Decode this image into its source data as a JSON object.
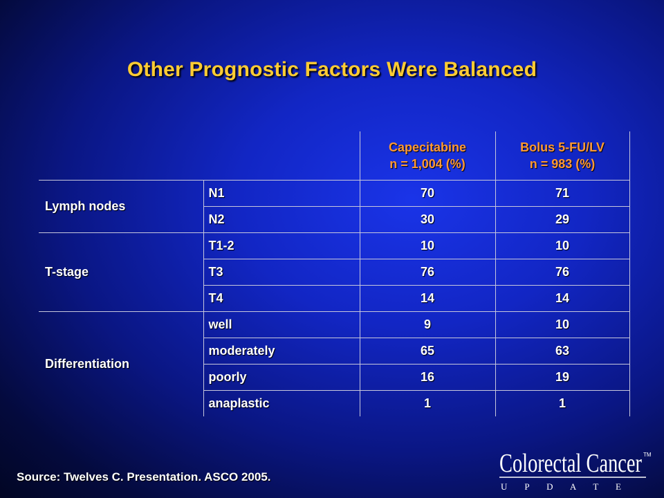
{
  "title": "Other Prognostic Factors Were Balanced",
  "table": {
    "columns": [
      {
        "name": "Capecitabine",
        "sub": "n = 1,004 (%)"
      },
      {
        "name": "Bolus 5-FU/LV",
        "sub": "n = 983 (%)"
      }
    ],
    "groups": [
      {
        "label": "Lymph nodes",
        "rows": [
          {
            "label": "N1",
            "values": [
              "70",
              "71"
            ]
          },
          {
            "label": "N2",
            "values": [
              "30",
              "29"
            ]
          }
        ]
      },
      {
        "label": "T-stage",
        "rows": [
          {
            "label": "T1-2",
            "values": [
              "10",
              "10"
            ]
          },
          {
            "label": "T3",
            "values": [
              "76",
              "76"
            ]
          },
          {
            "label": "T4",
            "values": [
              "14",
              "14"
            ]
          }
        ]
      },
      {
        "label": "Differentiation",
        "rows": [
          {
            "label": "well",
            "values": [
              "9",
              "10"
            ]
          },
          {
            "label": "moderately",
            "values": [
              "65",
              "63"
            ]
          },
          {
            "label": "poorly",
            "values": [
              "16",
              "19"
            ]
          },
          {
            "label": "anaplastic",
            "values": [
              "1",
              "1"
            ]
          }
        ]
      }
    ]
  },
  "source": "Source: Twelves C. Presentation. ASCO 2005.",
  "logo": {
    "line1": "Colorectal Cancer",
    "tm": "TM",
    "line2": "U P D A T E"
  },
  "colors": {
    "title": "#ffcc33",
    "header": "#ff9933",
    "text": "#ffffff",
    "background": "#1226c4"
  }
}
